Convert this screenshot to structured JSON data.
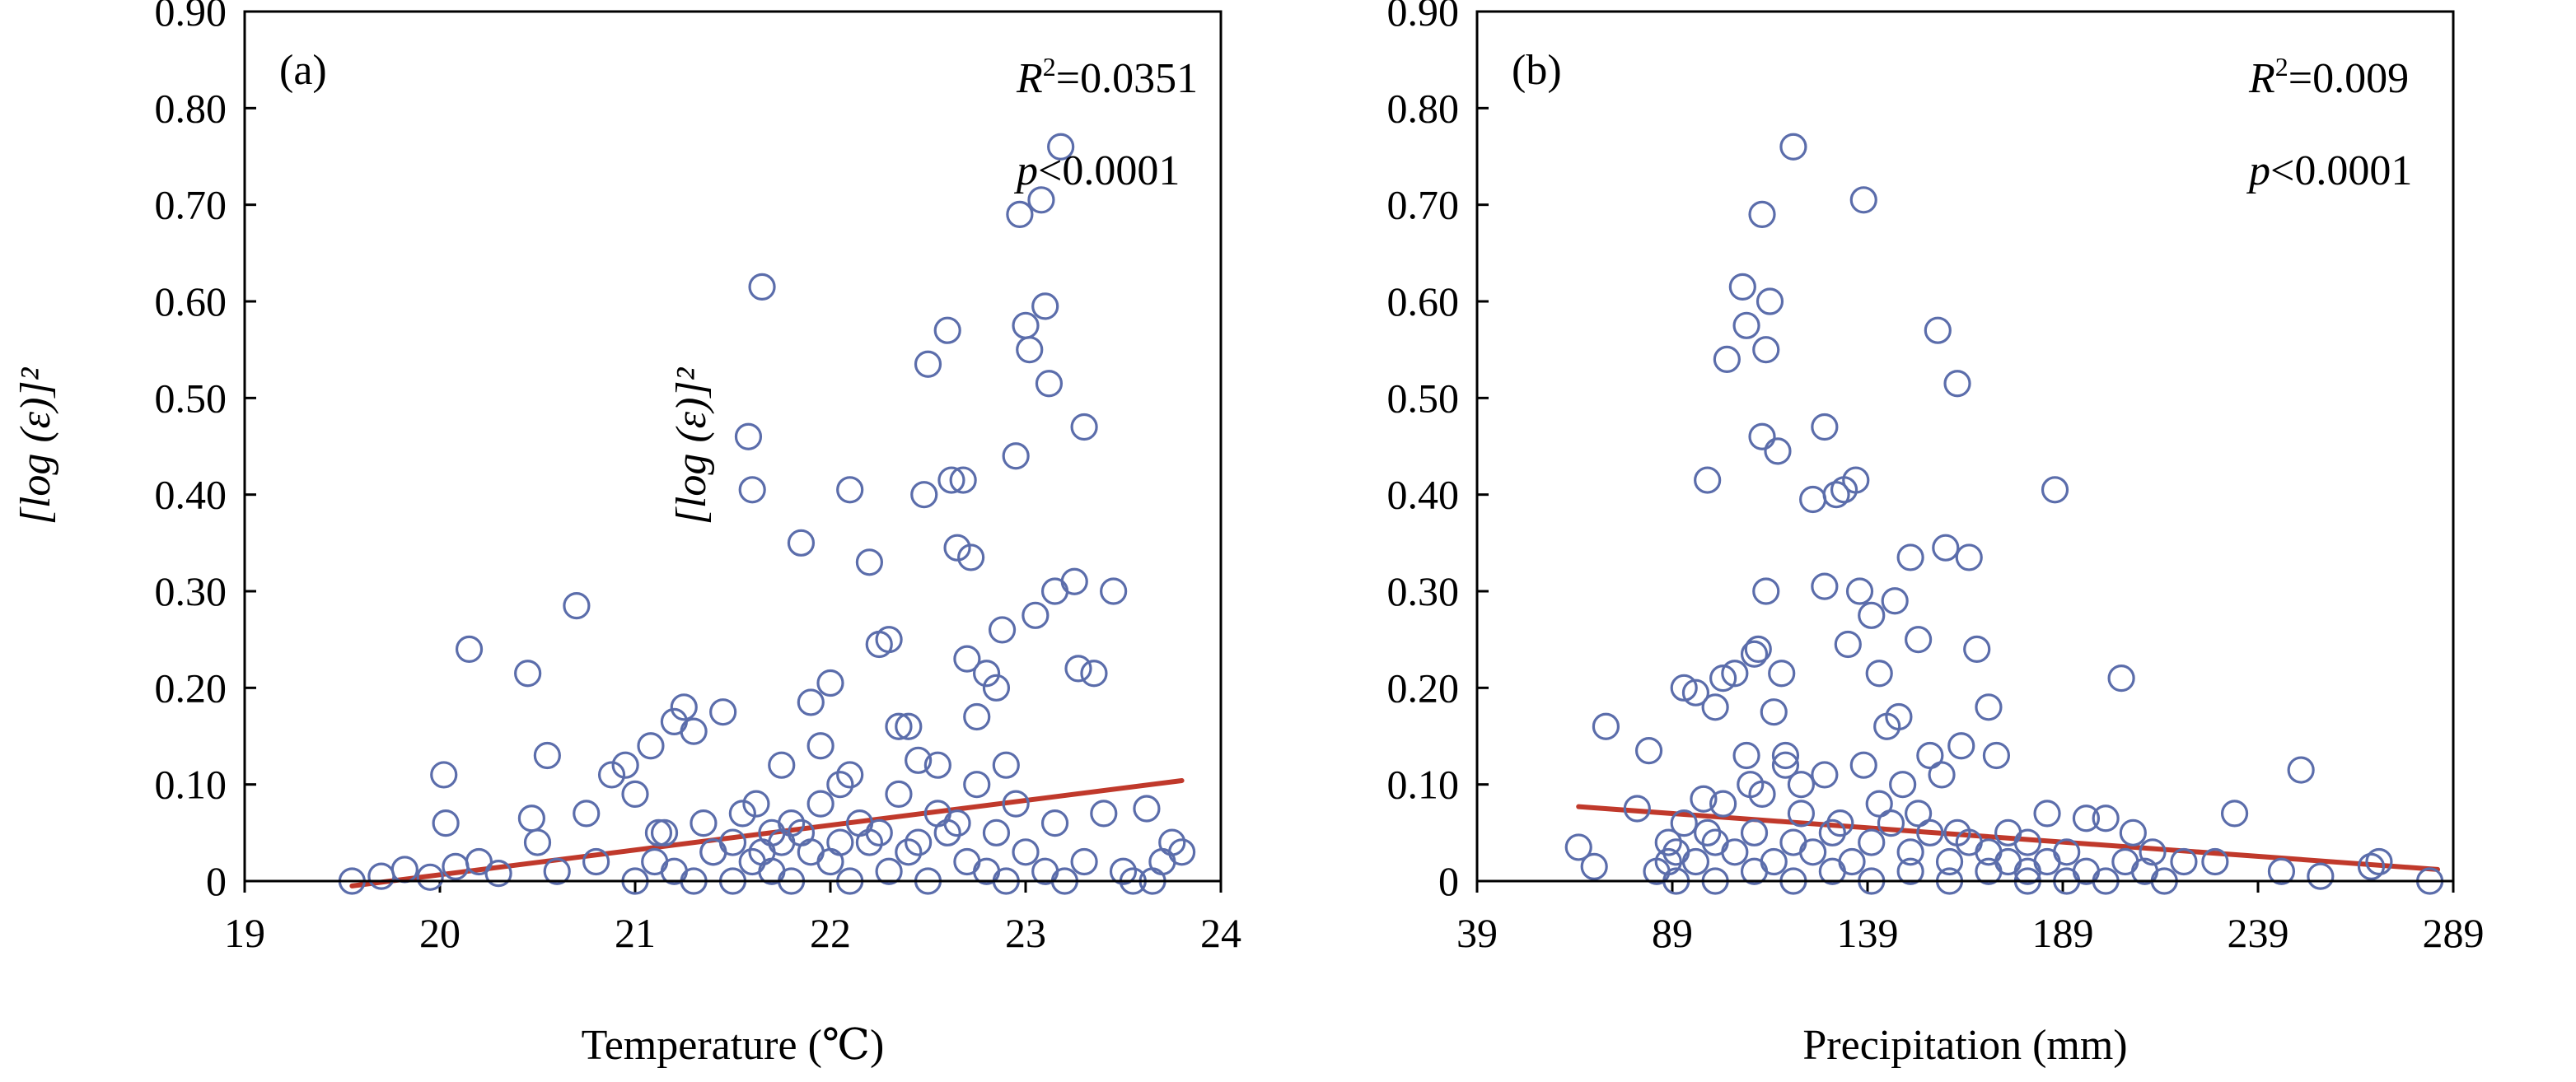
{
  "chart_data": [
    {
      "type": "scatter",
      "panel_label": "(a)",
      "xlabel": "Temperature (℃)",
      "ylabel": "[log (ε)]²",
      "xlim": [
        19,
        24
      ],
      "ylim": [
        0,
        0.9
      ],
      "xticks": [
        "19",
        "20",
        "21",
        "22",
        "23",
        "24"
      ],
      "yticks": [
        "0",
        "0.10",
        "0.20",
        "0.30",
        "0.40",
        "0.50",
        "0.60",
        "0.70",
        "0.80",
        "0.90"
      ],
      "grid": false,
      "annotation_r2_label": "R",
      "annotation_r2_sup": "2",
      "annotation_r2_value": "=0.0351",
      "annotation_p_label": "p",
      "annotation_p_value": "<0.0001",
      "marker_color": "#5b6dab",
      "trend_color": "#c0392b",
      "trendline": [
        [
          19.55,
          -0.005
        ],
        [
          23.8,
          0.104
        ]
      ],
      "points": [
        [
          19.55,
          0.0
        ],
        [
          19.7,
          0.005
        ],
        [
          19.82,
          0.012
        ],
        [
          19.95,
          0.004
        ],
        [
          20.02,
          0.11
        ],
        [
          20.03,
          0.06
        ],
        [
          20.08,
          0.015
        ],
        [
          20.15,
          0.24
        ],
        [
          20.2,
          0.02
        ],
        [
          20.3,
          0.008
        ],
        [
          20.45,
          0.215
        ],
        [
          20.47,
          0.065
        ],
        [
          20.5,
          0.04
        ],
        [
          20.55,
          0.13
        ],
        [
          20.6,
          0.01
        ],
        [
          20.7,
          0.285
        ],
        [
          20.75,
          0.07
        ],
        [
          20.8,
          0.02
        ],
        [
          20.88,
          0.11
        ],
        [
          20.95,
          0.12
        ],
        [
          21.0,
          0.09
        ],
        [
          21.08,
          0.14
        ],
        [
          21.12,
          0.05
        ],
        [
          21.2,
          0.165
        ],
        [
          21.25,
          0.18
        ],
        [
          21.3,
          0.155
        ],
        [
          21.4,
          0.03
        ],
        [
          21.45,
          0.175
        ],
        [
          21.5,
          0.04
        ],
        [
          21.58,
          0.46
        ],
        [
          21.6,
          0.405
        ],
        [
          21.62,
          0.08
        ],
        [
          21.65,
          0.615
        ],
        [
          21.7,
          0.05
        ],
        [
          21.75,
          0.12
        ],
        [
          21.8,
          0.06
        ],
        [
          21.85,
          0.35
        ],
        [
          21.9,
          0.185
        ],
        [
          21.95,
          0.14
        ],
        [
          22.0,
          0.205
        ],
        [
          22.05,
          0.1
        ],
        [
          22.1,
          0.11
        ],
        [
          22.1,
          0.405
        ],
        [
          22.2,
          0.33
        ],
        [
          22.25,
          0.245
        ],
        [
          22.3,
          0.25
        ],
        [
          22.35,
          0.16
        ],
        [
          22.4,
          0.16
        ],
        [
          22.45,
          0.125
        ],
        [
          22.48,
          0.4
        ],
        [
          22.5,
          0.535
        ],
        [
          22.55,
          0.12
        ],
        [
          22.6,
          0.57
        ],
        [
          22.62,
          0.415
        ],
        [
          22.65,
          0.345
        ],
        [
          22.68,
          0.415
        ],
        [
          22.7,
          0.23
        ],
        [
          22.72,
          0.335
        ],
        [
          22.75,
          0.17
        ],
        [
          22.8,
          0.215
        ],
        [
          22.85,
          0.2
        ],
        [
          22.88,
          0.26
        ],
        [
          22.9,
          0.12
        ],
        [
          22.95,
          0.44
        ],
        [
          22.97,
          0.69
        ],
        [
          23.0,
          0.575
        ],
        [
          23.02,
          0.55
        ],
        [
          23.05,
          0.275
        ],
        [
          23.08,
          0.705
        ],
        [
          23.1,
          0.595
        ],
        [
          23.12,
          0.515
        ],
        [
          23.15,
          0.3
        ],
        [
          23.18,
          0.76
        ],
        [
          23.25,
          0.31
        ],
        [
          23.27,
          0.22
        ],
        [
          23.3,
          0.47
        ],
        [
          23.35,
          0.215
        ],
        [
          23.4,
          0.07
        ],
        [
          23.45,
          0.3
        ],
        [
          23.55,
          0.0
        ],
        [
          23.62,
          0.075
        ],
        [
          23.7,
          0.02
        ],
        [
          23.75,
          0.04
        ],
        [
          23.8,
          0.03
        ],
        [
          23.5,
          0.01
        ],
        [
          23.65,
          0.0
        ],
        [
          21.0,
          0.0
        ],
        [
          21.1,
          0.02
        ],
        [
          21.2,
          0.01
        ],
        [
          21.3,
          0.0
        ],
        [
          21.4,
          0.03
        ],
        [
          21.5,
          0.0
        ],
        [
          21.6,
          0.02
        ],
        [
          21.7,
          0.01
        ],
        [
          21.8,
          0.0
        ],
        [
          21.9,
          0.03
        ],
        [
          22.0,
          0.02
        ],
        [
          22.1,
          0.0
        ],
        [
          22.2,
          0.04
        ],
        [
          22.3,
          0.01
        ],
        [
          22.4,
          0.03
        ],
        [
          22.5,
          0.0
        ],
        [
          22.6,
          0.05
        ],
        [
          22.7,
          0.02
        ],
        [
          22.8,
          0.01
        ],
        [
          22.9,
          0.0
        ],
        [
          23.0,
          0.03
        ],
        [
          23.1,
          0.01
        ],
        [
          23.2,
          0.0
        ],
        [
          23.3,
          0.02
        ],
        [
          21.15,
          0.05
        ],
        [
          21.35,
          0.06
        ],
        [
          21.55,
          0.07
        ],
        [
          21.75,
          0.04
        ],
        [
          21.95,
          0.08
        ],
        [
          22.15,
          0.06
        ],
        [
          22.35,
          0.09
        ],
        [
          22.55,
          0.07
        ],
        [
          22.75,
          0.1
        ],
        [
          22.95,
          0.08
        ],
        [
          23.15,
          0.06
        ],
        [
          22.25,
          0.05
        ],
        [
          22.45,
          0.04
        ],
        [
          22.65,
          0.06
        ],
        [
          22.85,
          0.05
        ],
        [
          21.65,
          0.03
        ],
        [
          21.85,
          0.05
        ],
        [
          22.05,
          0.04
        ]
      ]
    },
    {
      "type": "scatter",
      "panel_label": "(b)",
      "xlabel": "Precipitation (mm)",
      "ylabel": "[log (ε)]²",
      "xlim": [
        39,
        289
      ],
      "ylim": [
        0,
        0.9
      ],
      "xticks": [
        "39",
        "89",
        "139",
        "189",
        "239",
        "289"
      ],
      "yticks": [
        "0",
        "0.10",
        "0.20",
        "0.30",
        "0.40",
        "0.50",
        "0.60",
        "0.70",
        "0.80",
        "0.90"
      ],
      "grid": false,
      "annotation_r2_label": "R",
      "annotation_r2_sup": "2",
      "annotation_r2_value": "=0.009",
      "annotation_p_label": "p",
      "annotation_p_value": "<0.0001",
      "marker_color": "#5b6dab",
      "trend_color": "#c0392b",
      "trendline": [
        [
          65,
          0.077
        ],
        [
          285,
          0.012
        ]
      ],
      "points": [
        [
          65,
          0.035
        ],
        [
          69,
          0.015
        ],
        [
          72,
          0.16
        ],
        [
          80,
          0.075
        ],
        [
          83,
          0.135
        ],
        [
          88,
          0.02
        ],
        [
          92,
          0.2
        ],
        [
          95,
          0.195
        ],
        [
          97,
          0.085
        ],
        [
          98,
          0.415
        ],
        [
          100,
          0.18
        ],
        [
          102,
          0.21
        ],
        [
          103,
          0.54
        ],
        [
          105,
          0.215
        ],
        [
          107,
          0.615
        ],
        [
          108,
          0.575
        ],
        [
          109,
          0.1
        ],
        [
          110,
          0.235
        ],
        [
          111,
          0.24
        ],
        [
          112,
          0.69
        ],
        [
          112,
          0.46
        ],
        [
          113,
          0.55
        ],
        [
          113,
          0.3
        ],
        [
          114,
          0.6
        ],
        [
          115,
          0.175
        ],
        [
          116,
          0.445
        ],
        [
          117,
          0.215
        ],
        [
          118,
          0.13
        ],
        [
          120,
          0.76
        ],
        [
          122,
          0.1
        ],
        [
          125,
          0.395
        ],
        [
          128,
          0.47
        ],
        [
          128,
          0.305
        ],
        [
          131,
          0.4
        ],
        [
          133,
          0.405
        ],
        [
          134,
          0.245
        ],
        [
          136,
          0.415
        ],
        [
          137,
          0.3
        ],
        [
          138,
          0.705
        ],
        [
          140,
          0.275
        ],
        [
          142,
          0.215
        ],
        [
          144,
          0.16
        ],
        [
          146,
          0.29
        ],
        [
          147,
          0.17
        ],
        [
          150,
          0.335
        ],
        [
          152,
          0.25
        ],
        [
          155,
          0.13
        ],
        [
          157,
          0.57
        ],
        [
          159,
          0.345
        ],
        [
          162,
          0.515
        ],
        [
          163,
          0.14
        ],
        [
          165,
          0.335
        ],
        [
          167,
          0.24
        ],
        [
          170,
          0.18
        ],
        [
          172,
          0.13
        ],
        [
          175,
          0.05
        ],
        [
          180,
          0.04
        ],
        [
          185,
          0.07
        ],
        [
          187,
          0.405
        ],
        [
          190,
          0.03
        ],
        [
          195,
          0.065
        ],
        [
          200,
          0.065
        ],
        [
          204,
          0.21
        ],
        [
          207,
          0.05
        ],
        [
          212,
          0.03
        ],
        [
          220,
          0.02
        ],
        [
          228,
          0.02
        ],
        [
          233,
          0.07
        ],
        [
          245,
          0.01
        ],
        [
          250,
          0.115
        ],
        [
          255,
          0.005
        ],
        [
          268,
          0.015
        ],
        [
          270,
          0.02
        ],
        [
          283,
          0.0
        ],
        [
          85,
          0.01
        ],
        [
          90,
          0.03
        ],
        [
          95,
          0.02
        ],
        [
          100,
          0.04
        ],
        [
          105,
          0.03
        ],
        [
          110,
          0.05
        ],
        [
          115,
          0.02
        ],
        [
          120,
          0.04
        ],
        [
          125,
          0.03
        ],
        [
          130,
          0.05
        ],
        [
          135,
          0.02
        ],
        [
          140,
          0.04
        ],
        [
          145,
          0.06
        ],
        [
          150,
          0.03
        ],
        [
          155,
          0.05
        ],
        [
          160,
          0.02
        ],
        [
          165,
          0.04
        ],
        [
          170,
          0.03
        ],
        [
          175,
          0.02
        ],
        [
          180,
          0.01
        ],
        [
          185,
          0.02
        ],
        [
          190,
          0.0
        ],
        [
          195,
          0.01
        ],
        [
          200,
          0.0
        ],
        [
          205,
          0.02
        ],
        [
          210,
          0.01
        ],
        [
          215,
          0.0
        ],
        [
          90,
          0.0
        ],
        [
          100,
          0.0
        ],
        [
          110,
          0.01
        ],
        [
          120,
          0.0
        ],
        [
          130,
          0.01
        ],
        [
          140,
          0.0
        ],
        [
          150,
          0.01
        ],
        [
          160,
          0.0
        ],
        [
          170,
          0.01
        ],
        [
          180,
          0.0
        ],
        [
          92,
          0.06
        ],
        [
          102,
          0.08
        ],
        [
          112,
          0.09
        ],
        [
          122,
          0.07
        ],
        [
          132,
          0.06
        ],
        [
          142,
          0.08
        ],
        [
          152,
          0.07
        ],
        [
          162,
          0.05
        ],
        [
          118,
          0.12
        ],
        [
          128,
          0.11
        ],
        [
          138,
          0.12
        ],
        [
          148,
          0.1
        ],
        [
          158,
          0.11
        ],
        [
          108,
          0.13
        ],
        [
          98,
          0.05
        ],
        [
          88,
          0.04
        ]
      ]
    }
  ]
}
